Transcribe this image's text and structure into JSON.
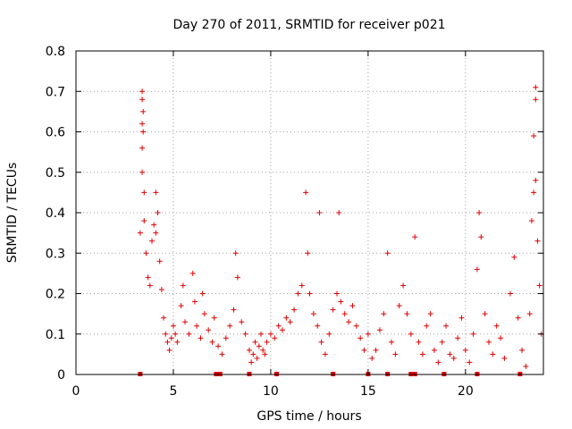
{
  "chart_data": {
    "type": "scatter",
    "title": "Day 270 of 2011, SRMTID for receiver p021",
    "xlabel": "GPS time / hours",
    "ylabel": "SRMTID / TECUs",
    "xlim": [
      0,
      24
    ],
    "ylim": [
      0,
      0.8
    ],
    "xticks": [
      "0",
      "5",
      "10",
      "15",
      "20"
    ],
    "yticks": [
      "0",
      "0.1",
      "0.2",
      "0.3",
      "0.4",
      "0.5",
      "0.6",
      "0.7",
      "0.8"
    ],
    "grid": true,
    "marker": "+",
    "color": "#e00000",
    "series": [
      {
        "name": "SRMTID",
        "points": [
          [
            3.3,
            0.35
          ],
          [
            3.4,
            0.7
          ],
          [
            3.4,
            0.68
          ],
          [
            3.45,
            0.65
          ],
          [
            3.4,
            0.62
          ],
          [
            3.45,
            0.6
          ],
          [
            3.4,
            0.56
          ],
          [
            3.4,
            0.5
          ],
          [
            3.5,
            0.45
          ],
          [
            3.5,
            0.38
          ],
          [
            3.6,
            0.3
          ],
          [
            3.7,
            0.24
          ],
          [
            3.8,
            0.22
          ],
          [
            3.9,
            0.33
          ],
          [
            4.0,
            0.37
          ],
          [
            4.1,
            0.35
          ],
          [
            4.1,
            0.45
          ],
          [
            4.2,
            0.4
          ],
          [
            4.3,
            0.28
          ],
          [
            4.4,
            0.21
          ],
          [
            4.5,
            0.14
          ],
          [
            4.6,
            0.1
          ],
          [
            4.7,
            0.08
          ],
          [
            4.8,
            0.06
          ],
          [
            4.9,
            0.09
          ],
          [
            5.0,
            0.12
          ],
          [
            5.1,
            0.1
          ],
          [
            5.2,
            0.08
          ],
          [
            5.4,
            0.17
          ],
          [
            5.5,
            0.22
          ],
          [
            5.6,
            0.13
          ],
          [
            5.8,
            0.1
          ],
          [
            6.0,
            0.25
          ],
          [
            6.1,
            0.18
          ],
          [
            6.2,
            0.12
          ],
          [
            6.4,
            0.09
          ],
          [
            6.5,
            0.2
          ],
          [
            6.6,
            0.15
          ],
          [
            6.8,
            0.11
          ],
          [
            7.0,
            0.08
          ],
          [
            7.1,
            0.14
          ],
          [
            7.3,
            0.07
          ],
          [
            7.5,
            0.05
          ],
          [
            7.7,
            0.09
          ],
          [
            7.9,
            0.12
          ],
          [
            8.1,
            0.16
          ],
          [
            8.2,
            0.3
          ],
          [
            8.3,
            0.24
          ],
          [
            8.5,
            0.13
          ],
          [
            8.7,
            0.1
          ],
          [
            8.9,
            0.06
          ],
          [
            9.0,
            0.03
          ],
          [
            9.1,
            0.05
          ],
          [
            9.2,
            0.08
          ],
          [
            9.3,
            0.04
          ],
          [
            9.4,
            0.07
          ],
          [
            9.5,
            0.1
          ],
          [
            9.6,
            0.06
          ],
          [
            9.7,
            0.05
          ],
          [
            9.8,
            0.08
          ],
          [
            10.0,
            0.1
          ],
          [
            10.2,
            0.09
          ],
          [
            10.4,
            0.12
          ],
          [
            10.6,
            0.11
          ],
          [
            10.8,
            0.14
          ],
          [
            11.0,
            0.13
          ],
          [
            11.2,
            0.16
          ],
          [
            11.4,
            0.2
          ],
          [
            11.6,
            0.22
          ],
          [
            11.8,
            0.45
          ],
          [
            11.9,
            0.3
          ],
          [
            12.0,
            0.2
          ],
          [
            12.2,
            0.15
          ],
          [
            12.4,
            0.12
          ],
          [
            12.5,
            0.4
          ],
          [
            12.6,
            0.08
          ],
          [
            12.8,
            0.05
          ],
          [
            13.0,
            0.1
          ],
          [
            13.2,
            0.16
          ],
          [
            13.4,
            0.2
          ],
          [
            13.5,
            0.4
          ],
          [
            13.6,
            0.18
          ],
          [
            13.8,
            0.15
          ],
          [
            14.0,
            0.13
          ],
          [
            14.2,
            0.17
          ],
          [
            14.4,
            0.12
          ],
          [
            14.6,
            0.09
          ],
          [
            14.8,
            0.06
          ],
          [
            15.0,
            0.1
          ],
          [
            15.2,
            0.04
          ],
          [
            15.4,
            0.06
          ],
          [
            15.6,
            0.11
          ],
          [
            15.8,
            0.15
          ],
          [
            16.0,
            0.3
          ],
          [
            16.2,
            0.08
          ],
          [
            16.4,
            0.05
          ],
          [
            16.6,
            0.17
          ],
          [
            16.8,
            0.22
          ],
          [
            17.0,
            0.15
          ],
          [
            17.2,
            0.1
          ],
          [
            17.4,
            0.34
          ],
          [
            17.6,
            0.08
          ],
          [
            17.8,
            0.05
          ],
          [
            18.0,
            0.12
          ],
          [
            18.2,
            0.15
          ],
          [
            18.4,
            0.06
          ],
          [
            18.6,
            0.03
          ],
          [
            18.8,
            0.08
          ],
          [
            19.0,
            0.12
          ],
          [
            19.2,
            0.05
          ],
          [
            19.4,
            0.04
          ],
          [
            19.6,
            0.09
          ],
          [
            19.8,
            0.14
          ],
          [
            20.0,
            0.06
          ],
          [
            20.2,
            0.03
          ],
          [
            20.4,
            0.1
          ],
          [
            20.6,
            0.26
          ],
          [
            20.7,
            0.4
          ],
          [
            20.8,
            0.34
          ],
          [
            21.0,
            0.15
          ],
          [
            21.2,
            0.08
          ],
          [
            21.4,
            0.05
          ],
          [
            21.6,
            0.12
          ],
          [
            21.8,
            0.09
          ],
          [
            22.0,
            0.04
          ],
          [
            22.3,
            0.2
          ],
          [
            22.5,
            0.29
          ],
          [
            22.7,
            0.14
          ],
          [
            22.9,
            0.06
          ],
          [
            23.1,
            0.02
          ],
          [
            23.3,
            0.15
          ],
          [
            23.4,
            0.38
          ],
          [
            23.5,
            0.45
          ],
          [
            23.6,
            0.48
          ],
          [
            23.5,
            0.59
          ],
          [
            23.6,
            0.71
          ],
          [
            23.6,
            0.68
          ],
          [
            23.7,
            0.33
          ],
          [
            23.8,
            0.22
          ],
          [
            23.9,
            0.1
          ]
        ]
      }
    ],
    "baseline_markers_x": [
      3.3,
      7.2,
      7.4,
      8.9,
      10.3,
      13.2,
      15.0,
      16.0,
      17.2,
      17.4,
      18.9,
      20.6,
      22.8
    ]
  }
}
